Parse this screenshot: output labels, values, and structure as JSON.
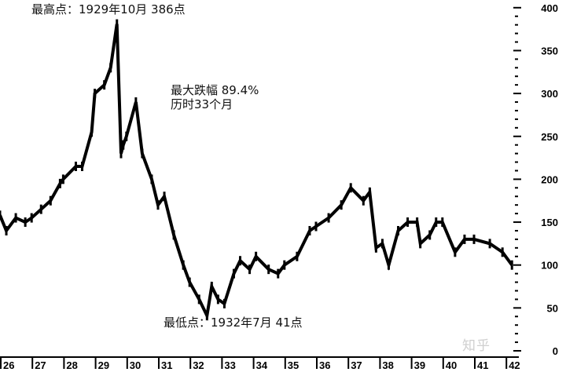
{
  "chart_data": {
    "type": "line",
    "title": "",
    "xlabel": "",
    "ylabel": "",
    "xlim": [
      1926,
      1942.3
    ],
    "ylim": [
      0,
      400
    ],
    "x_tick_labels": [
      "26",
      "27",
      "28",
      "29",
      "30",
      "31",
      "32",
      "33",
      "34",
      "35",
      "36",
      "37",
      "38",
      "39",
      "40",
      "41",
      "42"
    ],
    "y_tick_labels": [
      "400",
      "350",
      "300",
      "250",
      "200",
      "150",
      "100",
      "50",
      "0"
    ],
    "y_ticks": [
      400,
      350,
      300,
      250,
      200,
      150,
      100,
      50,
      0
    ],
    "grid": false,
    "line_color": "#000000",
    "x": [
      1926.0,
      1926.2,
      1926.5,
      1926.8,
      1927.0,
      1927.3,
      1927.6,
      1927.9,
      1928.0,
      1928.4,
      1928.6,
      1928.9,
      1929.0,
      1929.3,
      1929.5,
      1929.7,
      1929.83,
      1929.9,
      1930.0,
      1930.3,
      1930.5,
      1930.8,
      1931.0,
      1931.2,
      1931.5,
      1931.8,
      1932.0,
      1932.3,
      1932.55,
      1932.7,
      1932.9,
      1933.1,
      1933.4,
      1933.6,
      1933.9,
      1934.1,
      1934.5,
      1934.8,
      1935.0,
      1935.4,
      1935.8,
      1936.0,
      1936.4,
      1936.8,
      1937.1,
      1937.5,
      1937.7,
      1937.9,
      1938.1,
      1938.3,
      1938.6,
      1938.9,
      1939.2,
      1939.3,
      1939.6,
      1939.8,
      1940.0,
      1940.4,
      1940.7,
      1941.0,
      1941.5,
      1941.9,
      1942.2
    ],
    "y": [
      158,
      140,
      155,
      150,
      155,
      165,
      175,
      195,
      200,
      215,
      215,
      255,
      300,
      310,
      330,
      381,
      230,
      240,
      250,
      290,
      230,
      200,
      170,
      180,
      135,
      100,
      80,
      60,
      41,
      75,
      60,
      55,
      90,
      105,
      95,
      110,
      95,
      90,
      100,
      110,
      140,
      145,
      155,
      170,
      190,
      175,
      185,
      120,
      125,
      100,
      140,
      150,
      150,
      125,
      135,
      150,
      150,
      115,
      130,
      130,
      125,
      115,
      100
    ],
    "annotations": {
      "high": "最高点：1929年10月 386点",
      "drop_line1": "最大跌幅 89.4%",
      "drop_line2": "历时33个月",
      "low": "最低点：1932年7月 41点"
    }
  },
  "watermark": "知乎"
}
